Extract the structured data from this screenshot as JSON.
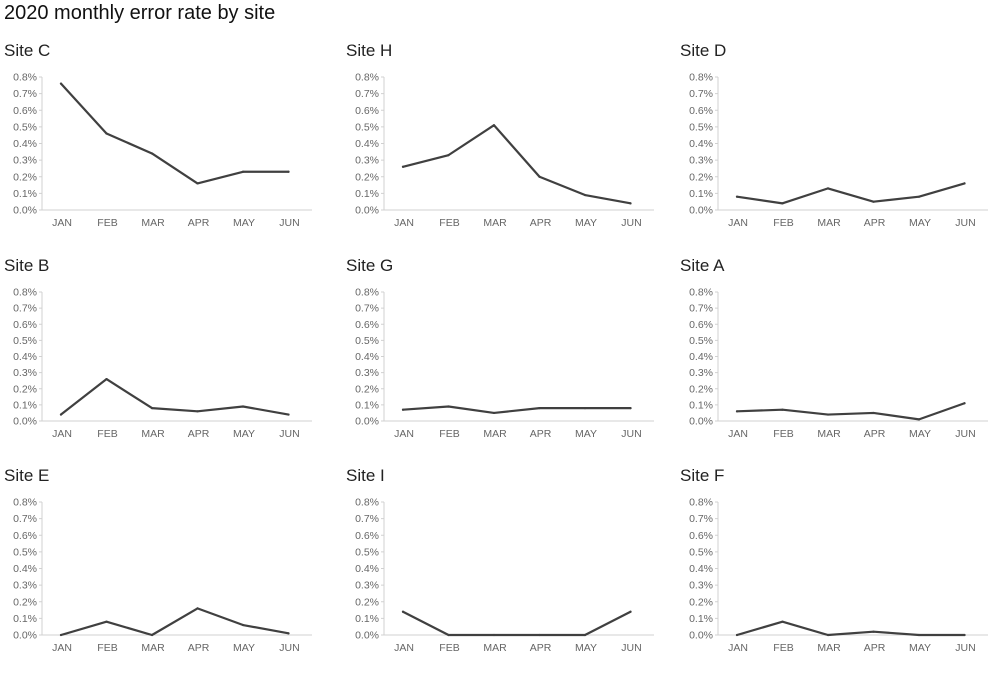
{
  "title": "2020 monthly error rate by site",
  "colors": {
    "line": "#404040",
    "axis": "#d0d0d0",
    "tick_text": "#666666"
  },
  "chart_data": [
    {
      "type": "line",
      "title": "Site C",
      "categories": [
        "JAN",
        "FEB",
        "MAR",
        "APR",
        "MAY",
        "JUN"
      ],
      "values": [
        0.76,
        0.46,
        0.34,
        0.16,
        0.23,
        0.23
      ],
      "ylim": [
        0,
        0.8
      ],
      "yticks": [
        "0.0%",
        "0.1%",
        "0.2%",
        "0.3%",
        "0.4%",
        "0.5%",
        "0.6%",
        "0.7%",
        "0.8%"
      ],
      "grid": false
    },
    {
      "type": "line",
      "title": "Site H",
      "categories": [
        "JAN",
        "FEB",
        "MAR",
        "APR",
        "MAY",
        "JUN"
      ],
      "values": [
        0.26,
        0.33,
        0.51,
        0.2,
        0.09,
        0.04
      ],
      "ylim": [
        0,
        0.8
      ],
      "yticks": [
        "0.0%",
        "0.1%",
        "0.2%",
        "0.3%",
        "0.4%",
        "0.5%",
        "0.6%",
        "0.7%",
        "0.8%"
      ],
      "grid": false
    },
    {
      "type": "line",
      "title": "Site D",
      "categories": [
        "JAN",
        "FEB",
        "MAR",
        "APR",
        "MAY",
        "JUN"
      ],
      "values": [
        0.08,
        0.04,
        0.13,
        0.05,
        0.08,
        0.16
      ],
      "ylim": [
        0,
        0.8
      ],
      "yticks": [
        "0.0%",
        "0.1%",
        "0.2%",
        "0.3%",
        "0.4%",
        "0.5%",
        "0.6%",
        "0.7%",
        "0.8%"
      ],
      "grid": false
    },
    {
      "type": "line",
      "title": "Site B",
      "categories": [
        "JAN",
        "FEB",
        "MAR",
        "APR",
        "MAY",
        "JUN"
      ],
      "values": [
        0.04,
        0.26,
        0.08,
        0.06,
        0.09,
        0.04
      ],
      "ylim": [
        0,
        0.8
      ],
      "yticks": [
        "0.0%",
        "0.1%",
        "0.2%",
        "0.3%",
        "0.4%",
        "0.5%",
        "0.6%",
        "0.7%",
        "0.8%"
      ],
      "grid": false
    },
    {
      "type": "line",
      "title": "Site G",
      "categories": [
        "JAN",
        "FEB",
        "MAR",
        "APR",
        "MAY",
        "JUN"
      ],
      "values": [
        0.07,
        0.09,
        0.05,
        0.08,
        0.08,
        0.08
      ],
      "ylim": [
        0,
        0.8
      ],
      "yticks": [
        "0.0%",
        "0.1%",
        "0.2%",
        "0.3%",
        "0.4%",
        "0.5%",
        "0.6%",
        "0.7%",
        "0.8%"
      ],
      "grid": false
    },
    {
      "type": "line",
      "title": "Site A",
      "categories": [
        "JAN",
        "FEB",
        "MAR",
        "APR",
        "MAY",
        "JUN"
      ],
      "values": [
        0.06,
        0.07,
        0.04,
        0.05,
        0.01,
        0.11
      ],
      "ylim": [
        0,
        0.8
      ],
      "yticks": [
        "0.0%",
        "0.1%",
        "0.2%",
        "0.3%",
        "0.4%",
        "0.5%",
        "0.6%",
        "0.7%",
        "0.8%"
      ],
      "grid": false
    },
    {
      "type": "line",
      "title": "Site E",
      "categories": [
        "JAN",
        "FEB",
        "MAR",
        "APR",
        "MAY",
        "JUN"
      ],
      "values": [
        0.0,
        0.08,
        0.0,
        0.16,
        0.06,
        0.01
      ],
      "ylim": [
        0,
        0.8
      ],
      "yticks": [
        "0.0%",
        "0.1%",
        "0.2%",
        "0.3%",
        "0.4%",
        "0.5%",
        "0.6%",
        "0.7%",
        "0.8%"
      ],
      "grid": false
    },
    {
      "type": "line",
      "title": "Site I",
      "categories": [
        "JAN",
        "FEB",
        "MAR",
        "APR",
        "MAY",
        "JUN"
      ],
      "values": [
        0.14,
        0.0,
        0.0,
        0.0,
        0.0,
        0.14
      ],
      "ylim": [
        0,
        0.8
      ],
      "yticks": [
        "0.0%",
        "0.1%",
        "0.2%",
        "0.3%",
        "0.4%",
        "0.5%",
        "0.6%",
        "0.7%",
        "0.8%"
      ],
      "grid": false
    },
    {
      "type": "line",
      "title": "Site F",
      "categories": [
        "JAN",
        "FEB",
        "MAR",
        "APR",
        "MAY",
        "JUN"
      ],
      "values": [
        0.0,
        0.08,
        0.0,
        0.02,
        0.0,
        0.0
      ],
      "ylim": [
        0,
        0.8
      ],
      "yticks": [
        "0.0%",
        "0.1%",
        "0.2%",
        "0.3%",
        "0.4%",
        "0.5%",
        "0.6%",
        "0.7%",
        "0.8%"
      ],
      "grid": false
    }
  ]
}
